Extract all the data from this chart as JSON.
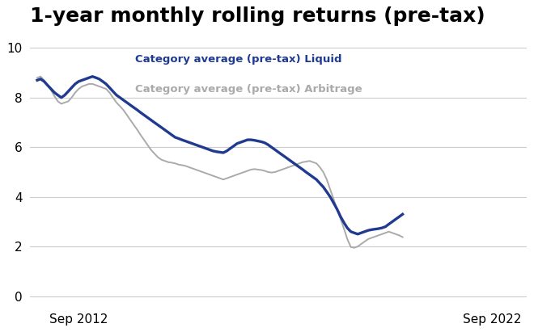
{
  "title": "1-year monthly rolling returns (pre-tax)",
  "title_fontsize": 18,
  "title_fontweight": "bold",
  "legend_liquid": "Category average (pre-tax) Liquid",
  "legend_arbitrage": "Category average (pre-tax) Arbitrage",
  "liquid_color": "#1f3a8f",
  "arbitrage_color": "#aaaaaa",
  "liquid_linewidth": 2.4,
  "arbitrage_linewidth": 1.4,
  "ylim": [
    -0.3,
    10.5
  ],
  "yticks": [
    0,
    2,
    4,
    6,
    8,
    10
  ],
  "background_color": "#ffffff",
  "grid_color": "#cccccc",
  "liquid_data": [
    8.7,
    8.75,
    8.65,
    8.5,
    8.35,
    8.2,
    8.1,
    8.0,
    8.1,
    8.25,
    8.4,
    8.55,
    8.65,
    8.7,
    8.75,
    8.8,
    8.85,
    8.8,
    8.75,
    8.65,
    8.55,
    8.4,
    8.25,
    8.1,
    8.0,
    7.9,
    7.8,
    7.7,
    7.6,
    7.5,
    7.4,
    7.3,
    7.2,
    7.1,
    7.0,
    6.9,
    6.8,
    6.7,
    6.6,
    6.5,
    6.4,
    6.35,
    6.3,
    6.25,
    6.2,
    6.15,
    6.1,
    6.05,
    6.0,
    5.95,
    5.9,
    5.85,
    5.82,
    5.8,
    5.78,
    5.85,
    5.95,
    6.05,
    6.15,
    6.2,
    6.25,
    6.3,
    6.3,
    6.28,
    6.25,
    6.22,
    6.18,
    6.1,
    6.0,
    5.9,
    5.8,
    5.7,
    5.6,
    5.5,
    5.4,
    5.3,
    5.2,
    5.1,
    5.0,
    4.9,
    4.8,
    4.7,
    4.55,
    4.4,
    4.2,
    4.0,
    3.75,
    3.5,
    3.2,
    2.95,
    2.75,
    2.6,
    2.55,
    2.5,
    2.55,
    2.6,
    2.65,
    2.68,
    2.7,
    2.72,
    2.75,
    2.8,
    2.9,
    3.0,
    3.1,
    3.2,
    3.3
  ],
  "arbitrage_data": [
    8.8,
    8.85,
    8.7,
    8.5,
    8.3,
    8.05,
    7.85,
    7.75,
    7.8,
    7.85,
    8.0,
    8.2,
    8.35,
    8.45,
    8.5,
    8.55,
    8.55,
    8.5,
    8.45,
    8.4,
    8.35,
    8.2,
    8.0,
    7.8,
    7.65,
    7.5,
    7.3,
    7.1,
    6.9,
    6.7,
    6.5,
    6.3,
    6.1,
    5.9,
    5.75,
    5.6,
    5.5,
    5.45,
    5.4,
    5.38,
    5.35,
    5.3,
    5.28,
    5.25,
    5.2,
    5.15,
    5.1,
    5.05,
    5.0,
    4.95,
    4.9,
    4.85,
    4.8,
    4.75,
    4.7,
    4.75,
    4.8,
    4.85,
    4.9,
    4.95,
    5.0,
    5.05,
    5.1,
    5.12,
    5.1,
    5.08,
    5.05,
    5.0,
    4.98,
    5.0,
    5.05,
    5.1,
    5.15,
    5.2,
    5.25,
    5.3,
    5.35,
    5.4,
    5.42,
    5.45,
    5.4,
    5.35,
    5.2,
    5.0,
    4.7,
    4.3,
    3.9,
    3.5,
    3.1,
    2.7,
    2.3,
    1.98,
    1.95,
    2.0,
    2.1,
    2.2,
    2.3,
    2.35,
    2.4,
    2.45,
    2.5,
    2.55,
    2.6,
    2.55,
    2.5,
    2.45,
    2.38
  ]
}
